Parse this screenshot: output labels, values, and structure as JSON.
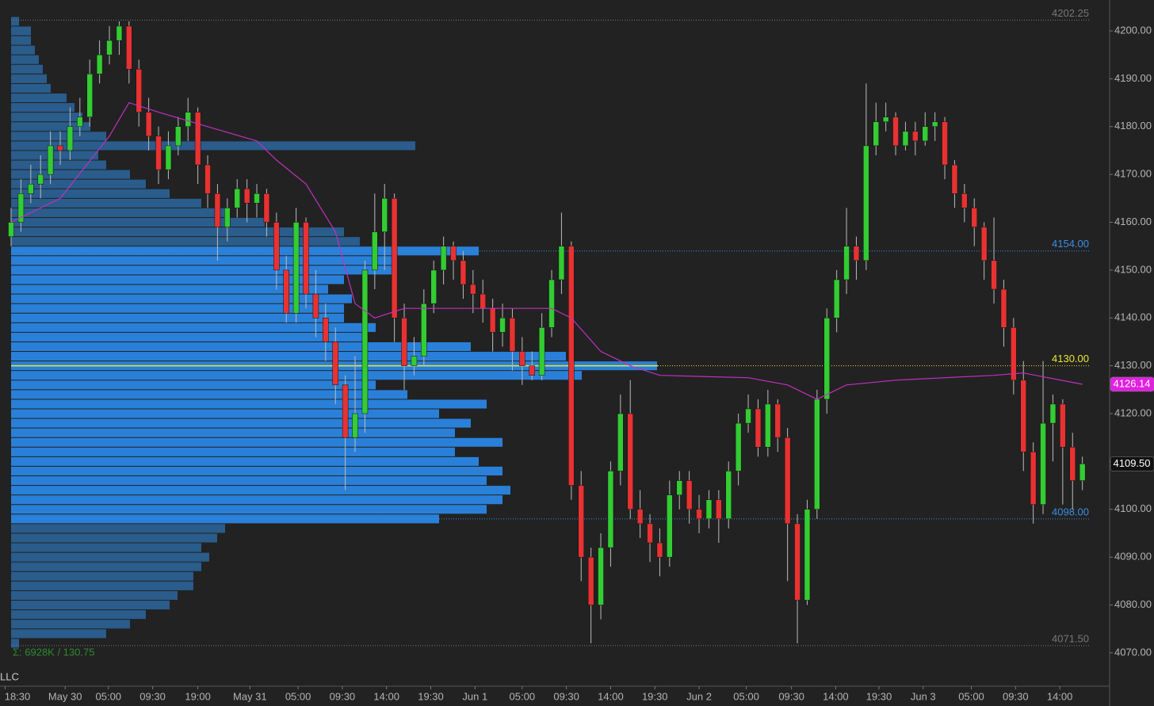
{
  "chart_data": {
    "type": "candlestick",
    "xticks": [
      {
        "value": -0.6,
        "label": "18:30"
      },
      {
        "value": 5.5,
        "label": "May 30"
      },
      {
        "value": 9.9,
        "label": "05:00"
      },
      {
        "value": 14.4,
        "label": "09:30"
      },
      {
        "value": 19.0,
        "label": "19:00"
      },
      {
        "value": 24.3,
        "label": "May 31"
      },
      {
        "value": 29.2,
        "label": "05:00"
      },
      {
        "value": 33.7,
        "label": "09:30"
      },
      {
        "value": 38.2,
        "label": "14:00"
      },
      {
        "value": 42.7,
        "label": "19:30"
      },
      {
        "value": 47.2,
        "label": "Jun 1"
      },
      {
        "value": 52.0,
        "label": "05:00"
      },
      {
        "value": 56.5,
        "label": "09:30"
      },
      {
        "value": 61.0,
        "label": "14:00"
      },
      {
        "value": 65.5,
        "label": "19:30"
      },
      {
        "value": 70.0,
        "label": "Jun 2"
      },
      {
        "value": 74.8,
        "label": "05:00"
      },
      {
        "value": 79.4,
        "label": "09:30"
      },
      {
        "value": 83.9,
        "label": "14:00"
      },
      {
        "value": 88.3,
        "label": "19:30"
      },
      {
        "value": 92.8,
        "label": "Jun 3"
      },
      {
        "value": 97.7,
        "label": "05:00"
      },
      {
        "value": 102.2,
        "label": "09:30"
      },
      {
        "value": 106.7,
        "label": "14:00"
      }
    ],
    "xlim": [
      -1.13,
      111.77
    ],
    "ylim": [
      4063.03,
      4206.46
    ],
    "yticks": [
      {
        "value": 4070,
        "label": "4070.00"
      },
      {
        "value": 4080,
        "label": "4080.00"
      },
      {
        "value": 4090,
        "label": "4090.00"
      },
      {
        "value": 4100,
        "label": "4100.00"
      },
      {
        "value": 4110,
        "label": "4110.00"
      },
      {
        "value": 4120,
        "label": "4120.00"
      },
      {
        "value": 4130,
        "label": "4130.00"
      },
      {
        "value": 4140,
        "label": "4140.00"
      },
      {
        "value": 4150,
        "label": "4150.00"
      },
      {
        "value": 4160,
        "label": "4160.00"
      },
      {
        "value": 4170,
        "label": "4170.00"
      },
      {
        "value": 4180,
        "label": "4180.00"
      },
      {
        "value": 4190,
        "label": "4190.00"
      },
      {
        "value": 4200,
        "label": "4200.00"
      }
    ],
    "up_color": "#33cc33",
    "down_color": "#e83232",
    "open": [
      4157,
      4160,
      4166,
      4168,
      4170,
      4176,
      4175,
      4180,
      4182,
      4191,
      4195,
      4198,
      4201,
      4192,
      4183,
      4178,
      4171,
      4176,
      4180,
      4183,
      4172,
      4166,
      4159,
      4163,
      4167,
      4164,
      4166,
      4160,
      4150,
      4141,
      4160,
      4145,
      4140,
      4135,
      4126,
      4115,
      4120,
      4150,
      4158,
      4165,
      4140,
      4130,
      4132,
      4143,
      4150,
      4155,
      4152,
      4147,
      4145,
      4142,
      4137,
      4140,
      4133,
      4130,
      4128,
      4138,
      4148,
      4155,
      4105,
      4090,
      4080,
      4092,
      4108,
      4120,
      4100,
      4097,
      4093,
      4090,
      4103,
      4106,
      4100,
      4098,
      4102,
      4098,
      4108,
      4118,
      4121,
      4113,
      4122,
      4115,
      4097,
      4081,
      4100,
      4123,
      4140,
      4148,
      4155,
      4152,
      4176,
      4181,
      4182,
      4176,
      4179,
      4177,
      4180,
      4181,
      4172,
      4166,
      4163,
      4159,
      4152,
      4146,
      4138,
      4127,
      4112,
      4101,
      4118,
      4122,
      4113,
      4106
    ],
    "high": [
      4163,
      4169,
      4172,
      4174,
      4179,
      4179,
      4184,
      4186,
      4194,
      4198,
      4201,
      4202,
      4202,
      4194,
      4186,
      4180,
      4179,
      4182,
      4186,
      4184,
      4174,
      4168,
      4165,
      4169,
      4169,
      4168,
      4167,
      4162,
      4153,
      4163,
      4161,
      4150,
      4143,
      4138,
      4128,
      4132,
      4152,
      4166,
      4168,
      4166,
      4143,
      4136,
      4146,
      4152,
      4157,
      4156,
      4154,
      4150,
      4148,
      4144,
      4143,
      4142,
      4136,
      4133,
      4141,
      4150,
      4162,
      4156,
      4108,
      4092,
      4095,
      4110,
      4124,
      4127,
      4104,
      4099,
      4096,
      4106,
      4108,
      4108,
      4103,
      4104,
      4104,
      4110,
      4120,
      4124,
      4123,
      4125,
      4123,
      4117,
      4099,
      4102,
      4125,
      4142,
      4150,
      4163,
      4157,
      4189,
      4185,
      4185,
      4183,
      4181,
      4181,
      4183,
      4183,
      4182,
      4173,
      4168,
      4165,
      4160,
      4161,
      4148,
      4140,
      4131,
      4114,
      4131,
      4124,
      4123,
      4116,
      4111
    ],
    "low": [
      4155,
      4158,
      4164,
      4165,
      4168,
      4172,
      4173,
      4178,
      4180,
      4189,
      4193,
      4195,
      4189,
      4180,
      4175,
      4168,
      4169,
      4174,
      4177,
      4168,
      4163,
      4152,
      4156,
      4161,
      4160,
      4161,
      4157,
      4146,
      4139,
      4139,
      4142,
      4136,
      4131,
      4122,
      4104,
      4112,
      4116,
      4146,
      4150,
      4135,
      4125,
      4128,
      4130,
      4141,
      4147,
      4148,
      4144,
      4141,
      4139,
      4133,
      4134,
      4129,
      4126,
      4127,
      4127,
      4136,
      4145,
      4102,
      4085,
      4072,
      4077,
      4088,
      4105,
      4098,
      4094,
      4089,
      4086,
      4088,
      4100,
      4097,
      4095,
      4096,
      4093,
      4096,
      4105,
      4116,
      4111,
      4111,
      4112,
      4085,
      4072,
      4080,
      4098,
      4120,
      4137,
      4145,
      4148,
      4150,
      4174,
      4179,
      4174,
      4175,
      4174,
      4176,
      4177,
      4169,
      4163,
      4160,
      4155,
      4148,
      4143,
      4134,
      4124,
      4108,
      4097,
      4099,
      4110,
      4101,
      4100,
      4104
    ],
    "close": [
      4160,
      4166,
      4168,
      4170,
      4176,
      4175,
      4180,
      4182,
      4191,
      4195,
      4198,
      4201,
      4192,
      4183,
      4178,
      4171,
      4176,
      4180,
      4183,
      4172,
      4166,
      4159,
      4163,
      4167,
      4164,
      4166,
      4160,
      4150,
      4141,
      4160,
      4145,
      4140,
      4135,
      4126,
      4115,
      4120,
      4150,
      4158,
      4165,
      4140,
      4130,
      4132,
      4143,
      4150,
      4155,
      4152,
      4147,
      4145,
      4142,
      4137,
      4140,
      4133,
      4130,
      4128,
      4138,
      4148,
      4155,
      4105,
      4090,
      4080,
      4092,
      4108,
      4120,
      4100,
      4097,
      4093,
      4090,
      4103,
      4106,
      4100,
      4098,
      4102,
      4098,
      4108,
      4118,
      4121,
      4113,
      4122,
      4115,
      4097,
      4081,
      4100,
      4123,
      4140,
      4148,
      4155,
      4152,
      4176,
      4181,
      4182,
      4176,
      4179,
      4177,
      4180,
      4181,
      4172,
      4166,
      4163,
      4159,
      4152,
      4146,
      4138,
      4127,
      4112,
      4101,
      4118,
      4122,
      4113,
      4106,
      4109.5
    ],
    "vwap": {
      "color": "#c030c0",
      "x": [
        0,
        5,
        10,
        12,
        15,
        20,
        25,
        27,
        30,
        33,
        35,
        37,
        40,
        55,
        57,
        60,
        63,
        66,
        75,
        79,
        82,
        85,
        90,
        100,
        103,
        109
      ],
      "values": [
        4160,
        4165,
        4178,
        4185,
        4183,
        4180,
        4177,
        4173,
        4168,
        4158,
        4143,
        4140,
        4142,
        4142,
        4140,
        4133,
        4130,
        4128,
        4127.5,
        4126,
        4123,
        4126,
        4127,
        4128,
        4128.5,
        4126.14
      ]
    },
    "profile": {
      "value_color": "#2a80d8",
      "outer_color": "#2a5c8c",
      "xlim": [
        0,
        1400
      ],
      "prices": [
        4072,
        4074,
        4076,
        4078,
        4080,
        4082,
        4084,
        4086,
        4088,
        4090,
        4092,
        4094,
        4096,
        4098,
        4100,
        4102,
        4104,
        4106,
        4108,
        4110,
        4112,
        4114,
        4116,
        4118,
        4120,
        4122,
        4124,
        4126,
        4128,
        4130,
        4132,
        4134,
        4136,
        4138,
        4140,
        4142,
        4144,
        4146,
        4148,
        4150,
        4152,
        4154,
        4156,
        4158,
        4160,
        4162,
        4164,
        4166,
        4168,
        4170,
        4172,
        4174,
        4176,
        4178,
        4180,
        4182,
        4184,
        4186,
        4188,
        4190,
        4192,
        4194,
        4196,
        4198,
        4200,
        4202
      ],
      "volumes": [
        10,
        120,
        150,
        170,
        200,
        210,
        230,
        230,
        240,
        250,
        240,
        260,
        270,
        540,
        600,
        620,
        630,
        600,
        620,
        590,
        560,
        620,
        560,
        580,
        540,
        600,
        500,
        460,
        720,
        815,
        700,
        580,
        450,
        460,
        420,
        420,
        430,
        400,
        420,
        480,
        480,
        590,
        440,
        420,
        320,
        270,
        240,
        200,
        170,
        150,
        120,
        110,
        510,
        120,
        100,
        90,
        80,
        70,
        50,
        45,
        40,
        35,
        30,
        25,
        25,
        10
      ]
    },
    "levels": [
      {
        "value": 4202.25,
        "label": "4202.25",
        "color": "#777777"
      },
      {
        "value": 4154,
        "label": "4154.00",
        "color": "#3a8ee6"
      },
      {
        "value": 4130,
        "label": "4130.00",
        "color": "#e8e830"
      },
      {
        "value": 4098,
        "label": "4098.00",
        "color": "#3a8ee6"
      },
      {
        "value": 4071.5,
        "label": "4071.50",
        "color": "#777777"
      }
    ],
    "price_tags": [
      {
        "value": 4126.14,
        "label": "4126.14",
        "color": "#e020e0"
      },
      {
        "value": 4109.5,
        "label": "4109.50",
        "color": "#111111"
      }
    ],
    "summary": "Σ: 6928K / 130.75",
    "watermark": "LLC"
  }
}
